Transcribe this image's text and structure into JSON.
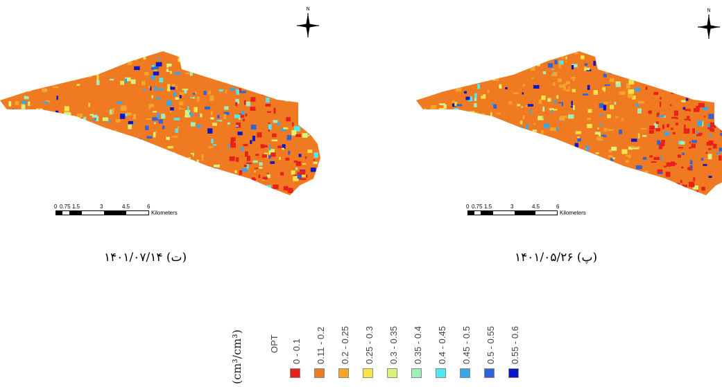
{
  "panels": [
    {
      "id": "left",
      "caption": "(ت) ۱۴۰۱/۰۷/۱۴",
      "north_letter": "N",
      "scale": {
        "ticks": [
          "0",
          "0.75",
          "1.5",
          "3",
          "4.5",
          "6"
        ],
        "unit": "Kilometers"
      }
    },
    {
      "id": "right",
      "caption": "(پ) ۱۴۰۱/۰۵/۲۶",
      "north_letter": "N",
      "scale": {
        "ticks": [
          "0",
          "0.75",
          "1.5",
          "3",
          "4.5",
          "6"
        ],
        "unit": "Kilometers"
      }
    }
  ],
  "legend": {
    "unit": "(cm³/cm³)",
    "title": "OPT",
    "classes": [
      {
        "label": "0 - 0.1",
        "color": "#e8201a"
      },
      {
        "label": "0.11 - 0.2",
        "color": "#f07a22"
      },
      {
        "label": "0.2 - 0.25",
        "color": "#f4a52a"
      },
      {
        "label": "0.25 - 0.3",
        "color": "#f7e44a"
      },
      {
        "label": "0.3 - 0.35",
        "color": "#d8f27a"
      },
      {
        "label": "0.35 - 0.4",
        "color": "#9ff0b8"
      },
      {
        "label": "0.4 - 0.45",
        "color": "#4ee9f2"
      },
      {
        "label": "0.45 - 0.5",
        "color": "#3aa6e8"
      },
      {
        "label": "0.5 - 0.55",
        "color": "#2f63d8"
      },
      {
        "label": "0.55 - 0.6",
        "color": "#0a16c8"
      }
    ]
  }
}
